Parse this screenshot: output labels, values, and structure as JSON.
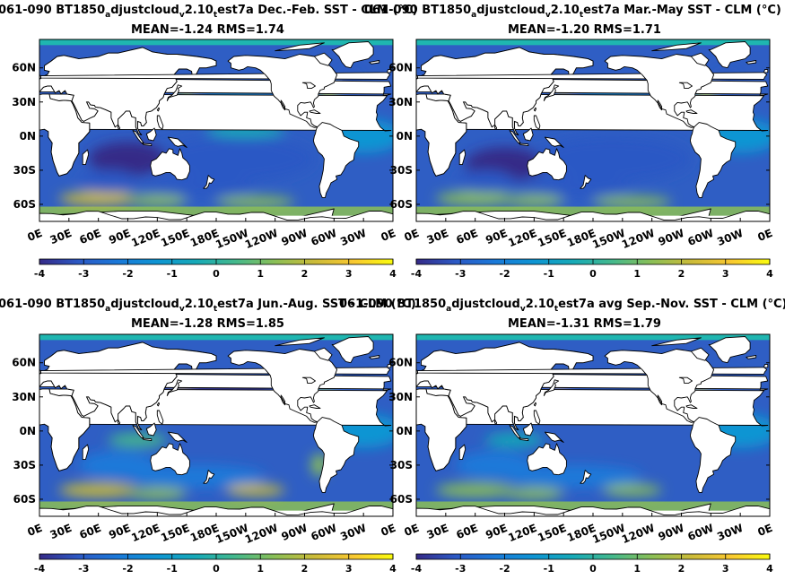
{
  "figure": {
    "background": "#ffffff",
    "ocean_base": "#2e4aa6",
    "land": "#ffffff",
    "polar_fill": "#1fb6b0"
  },
  "panels": [
    {
      "title_parts": [
        "061-090 BT1850",
        "a",
        "djustcloud",
        "v",
        "2.10",
        "t",
        "est7a  Dec.-Feb. SST - CLM (°C)"
      ],
      "stats": "MEAN=-1.24   RMS=1.74"
    },
    {
      "title_parts": [
        "061-090 BT1850",
        "a",
        "djustcloud",
        "v",
        "2.10",
        "t",
        "est7a Mar.-May SST - CLM (°C)"
      ],
      "stats": "MEAN=-1.20   RMS=1.71"
    },
    {
      "title_parts": [
        "061-090 BT1850",
        "a",
        "djustcloud",
        "v",
        "2.10",
        "t",
        "est7a Jun.-Aug. SST - CLM (°C)"
      ],
      "stats": "MEAN=-1.28   RMS=1.85"
    },
    {
      "title_parts": [
        "061-090 BT1850",
        "a",
        "djustcloud",
        "v",
        "2.10",
        "t",
        "est7a avg Sep.-Nov. SST - CLM (°C)"
      ],
      "stats": "MEAN=-1.31   RMS=1.79"
    }
  ],
  "chart_data": [
    {
      "type": "heatmap",
      "season": "Dec.-Feb.",
      "mean": -1.24,
      "rms": 1.74,
      "lat_ticks": [
        "60N",
        "30N",
        "0N",
        "30S",
        "60S"
      ],
      "lon_ticks": [
        "0E",
        "30E",
        "60E",
        "90E",
        "120E",
        "150E",
        "180E",
        "150W",
        "120W",
        "90W",
        "60W",
        "30W",
        "0E"
      ],
      "colorbar_ticks": [
        "-4",
        "-3",
        "-2",
        "-1",
        "0",
        "1",
        "2",
        "3",
        "4"
      ],
      "clim": [
        -4,
        4
      ],
      "colormap": "parula"
    },
    {
      "type": "heatmap",
      "season": "Mar.-May",
      "mean": -1.2,
      "rms": 1.71,
      "lat_ticks": [
        "60N",
        "30N",
        "0N",
        "30S",
        "60S"
      ],
      "lon_ticks": [
        "0E",
        "30E",
        "60E",
        "90E",
        "120E",
        "150E",
        "180E",
        "150W",
        "120W",
        "90W",
        "60W",
        "30W",
        "0E"
      ],
      "colorbar_ticks": [
        "-4",
        "-3",
        "-2",
        "-1",
        "0",
        "1",
        "2",
        "3",
        "4"
      ],
      "clim": [
        -4,
        4
      ],
      "colormap": "parula"
    },
    {
      "type": "heatmap",
      "season": "Jun.-Aug.",
      "mean": -1.28,
      "rms": 1.85,
      "lat_ticks": [
        "60N",
        "30N",
        "0N",
        "30S",
        "60S"
      ],
      "lon_ticks": [
        "0E",
        "30E",
        "60E",
        "90E",
        "120E",
        "150E",
        "180E",
        "150W",
        "120W",
        "90W",
        "60W",
        "30W",
        "0E"
      ],
      "colorbar_ticks": [
        "-4",
        "-3",
        "-2",
        "-1",
        "0",
        "1",
        "2",
        "3",
        "4"
      ],
      "clim": [
        -4,
        4
      ],
      "colormap": "parula"
    },
    {
      "type": "heatmap",
      "season": "Sep.-Nov.",
      "mean": -1.31,
      "rms": 1.79,
      "lat_ticks": [
        "60N",
        "30N",
        "0N",
        "30S",
        "60S"
      ],
      "lon_ticks": [
        "0E",
        "30E",
        "60E",
        "90E",
        "120E",
        "150E",
        "180E",
        "150W",
        "120W",
        "90W",
        "60W",
        "30W",
        "0E"
      ],
      "colorbar_ticks": [
        "-4",
        "-3",
        "-2",
        "-1",
        "0",
        "1",
        "2",
        "3",
        "4"
      ],
      "clim": [
        -4,
        4
      ],
      "colormap": "parula"
    }
  ]
}
